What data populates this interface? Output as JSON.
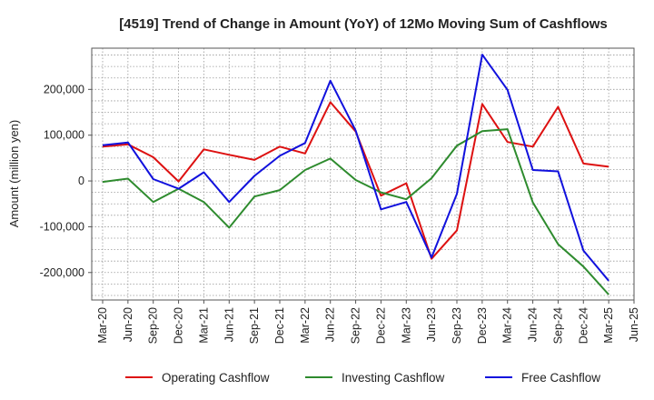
{
  "chart_data": {
    "type": "line",
    "title": "[4519]  Trend of Change in Amount (YoY) of 12Mo Moving Sum of Cashflows",
    "xlabel": "",
    "ylabel": "Amount (million yen)",
    "ylim": [
      -260000,
      290000
    ],
    "yticks": [
      -200000,
      -100000,
      0,
      100000,
      200000
    ],
    "ytick_labels": [
      "-200,000",
      "-100,000",
      "0",
      "100,000",
      "200,000"
    ],
    "grid": true,
    "legend_position": "bottom",
    "categories": [
      "Mar-20",
      "Jun-20",
      "Sep-20",
      "Dec-20",
      "Mar-21",
      "Jun-21",
      "Sep-21",
      "Dec-21",
      "Mar-22",
      "Jun-22",
      "Sep-22",
      "Dec-22",
      "Mar-23",
      "Jun-23",
      "Sep-23",
      "Dec-23",
      "Mar-24",
      "Jun-24",
      "Sep-24",
      "Dec-24",
      "Mar-25",
      "Jun-25"
    ],
    "series": [
      {
        "name": "Operating Cashflow",
        "color": "#dd1111",
        "values": [
          75000,
          80000,
          52000,
          -1000,
          69000,
          57000,
          46000,
          75000,
          60000,
          172000,
          108000,
          -32000,
          -5000,
          -170000,
          -108000,
          168000,
          85000,
          75000,
          162000,
          38000,
          31000,
          null
        ]
      },
      {
        "name": "Investing Cashflow",
        "color": "#2e8b2e",
        "values": [
          -2000,
          5000,
          -46000,
          -17000,
          -46000,
          -102000,
          -34000,
          -20000,
          24000,
          49000,
          2000,
          -25000,
          -40000,
          6000,
          77000,
          109000,
          113000,
          -47000,
          -138000,
          -187000,
          -248000,
          null
        ]
      },
      {
        "name": "Free Cashflow",
        "color": "#1111dd",
        "values": [
          78000,
          84000,
          4000,
          -17000,
          19000,
          -46000,
          11000,
          55000,
          83000,
          219000,
          110000,
          -62000,
          -46000,
          -167000,
          -28000,
          276000,
          199000,
          24000,
          21000,
          -152000,
          -218000,
          null
        ]
      }
    ]
  }
}
